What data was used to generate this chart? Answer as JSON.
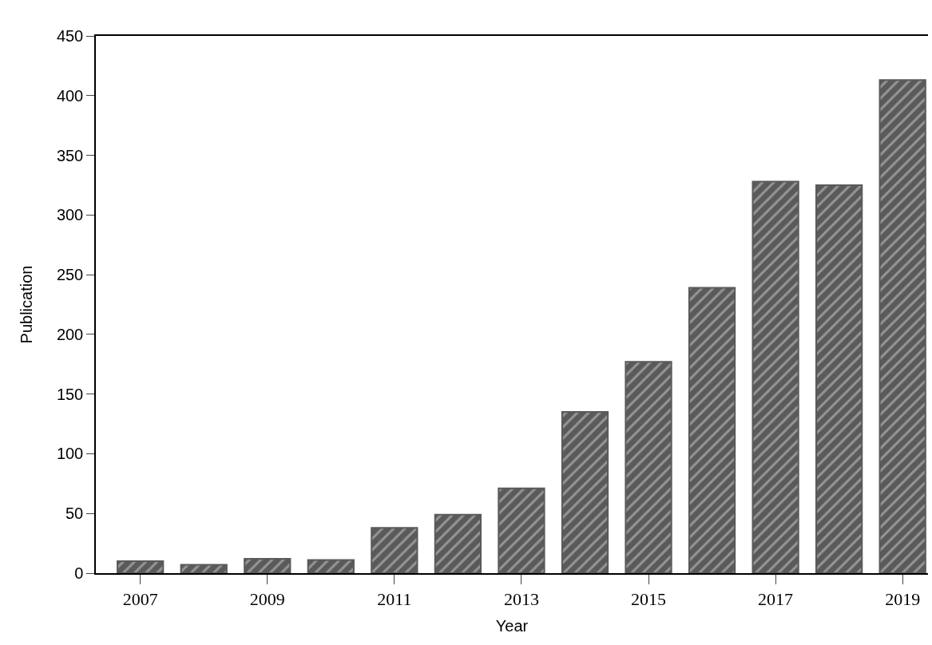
{
  "chart_data": {
    "type": "bar",
    "xlabel": "Year",
    "ylabel": "Publication",
    "x": [
      2007,
      2008,
      2009,
      2010,
      2011,
      2012,
      2013,
      2014,
      2015,
      2016,
      2017,
      2018,
      2019
    ],
    "values": [
      10,
      7,
      12,
      11,
      38,
      49,
      71,
      135,
      177,
      239,
      328,
      325,
      413
    ],
    "color": "#5a5a5a",
    "xlim": [
      2006.3,
      2019.4
    ],
    "xticks": [
      2007,
      2009,
      2011,
      2013,
      2015,
      2017,
      2019
    ],
    "ylim": [
      0,
      450
    ],
    "yticks": [
      0,
      50,
      100,
      150,
      200,
      250,
      300,
      350,
      400,
      450
    ],
    "legend": false
  }
}
